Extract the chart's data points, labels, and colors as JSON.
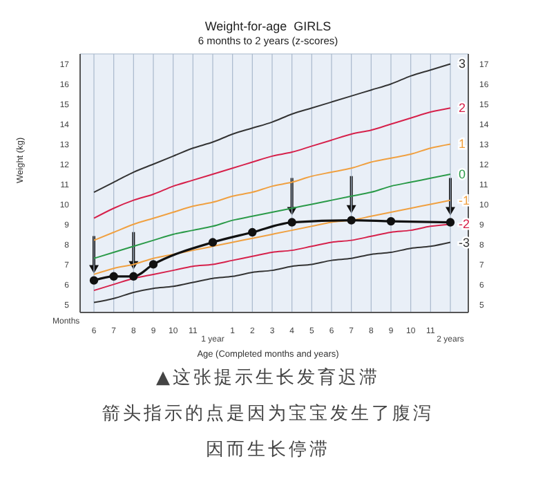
{
  "chart_data": {
    "type": "line",
    "title": "Weight-for-age  GIRLS",
    "subtitle": "6 months to 2 years (z-scores)",
    "xlabel": "Age (Completed months and years)",
    "ylabel": "Weight (kg)",
    "annotations": [
      "Months",
      "1 year",
      "2 years",
      "▲这张提示生长发育迟滞",
      "箭头指示的点是因为宝宝发生了腹泻",
      "因而生长停滞"
    ],
    "categories": [
      "6",
      "7",
      "8",
      "9",
      "10",
      "11",
      null,
      "1",
      "2",
      "3",
      "4",
      "5",
      "6",
      "7",
      "8",
      "9",
      "10",
      "11",
      null
    ],
    "ylim": [
      4.6,
      17.5
    ],
    "yticks": [
      5,
      6,
      7,
      8,
      9,
      10,
      11,
      12,
      13,
      14,
      15,
      16,
      17
    ],
    "y2lim": [
      4.6,
      17.5
    ],
    "y2ticks": [
      5,
      6,
      7,
      8,
      9,
      10,
      11,
      12,
      13,
      14,
      15,
      16,
      17
    ],
    "grid": true,
    "marker": "none",
    "line_style": "solid",
    "series": [
      {
        "name": "3",
        "color": "#333333",
        "values": [
          10.6,
          11.1,
          11.6,
          12.0,
          12.4,
          12.8,
          13.1,
          13.5,
          13.8,
          14.1,
          14.5,
          14.8,
          15.1,
          15.4,
          15.7,
          16.0,
          16.4,
          16.7,
          17.0
        ]
      },
      {
        "name": "2",
        "color": "#d6204a",
        "values": [
          9.3,
          9.8,
          10.2,
          10.5,
          10.9,
          11.2,
          11.5,
          11.8,
          12.1,
          12.4,
          12.6,
          12.9,
          13.2,
          13.5,
          13.7,
          14.0,
          14.3,
          14.6,
          14.8
        ]
      },
      {
        "name": "1",
        "color": "#f0a040",
        "values": [
          8.2,
          8.6,
          9.0,
          9.3,
          9.6,
          9.9,
          10.1,
          10.4,
          10.6,
          10.9,
          11.1,
          11.4,
          11.6,
          11.8,
          12.1,
          12.3,
          12.5,
          12.8,
          13.0
        ]
      },
      {
        "name": "0",
        "color": "#2a9a48",
        "values": [
          7.3,
          7.6,
          7.9,
          8.2,
          8.5,
          8.7,
          8.9,
          9.2,
          9.4,
          9.6,
          9.8,
          10.0,
          10.2,
          10.4,
          10.6,
          10.9,
          11.1,
          11.3,
          11.5
        ]
      },
      {
        "name": "-1",
        "color": "#f0a040",
        "values": [
          6.5,
          6.8,
          7.0,
          7.3,
          7.5,
          7.7,
          7.9,
          8.1,
          8.3,
          8.5,
          8.7,
          8.9,
          9.1,
          9.2,
          9.4,
          9.6,
          9.8,
          10.0,
          10.2
        ]
      },
      {
        "name": "-2",
        "color": "#d6204a",
        "values": [
          5.7,
          6.0,
          6.3,
          6.5,
          6.7,
          6.9,
          7.0,
          7.2,
          7.4,
          7.6,
          7.7,
          7.9,
          8.1,
          8.2,
          8.4,
          8.6,
          8.7,
          8.9,
          9.0
        ]
      },
      {
        "name": "-3",
        "color": "#333333",
        "values": [
          5.1,
          5.3,
          5.6,
          5.8,
          5.9,
          6.1,
          6.3,
          6.4,
          6.6,
          6.7,
          6.9,
          7.0,
          7.2,
          7.3,
          7.5,
          7.6,
          7.8,
          7.9,
          8.1
        ]
      },
      {
        "color": "#111111",
        "marker": "circle",
        "values": [
          6.2,
          6.4,
          6.4,
          7.0,
          null,
          null,
          8.1,
          null,
          8.6,
          null,
          9.1,
          null,
          null,
          9.2,
          null,
          9.15,
          null,
          null,
          9.1
        ]
      }
    ]
  }
}
